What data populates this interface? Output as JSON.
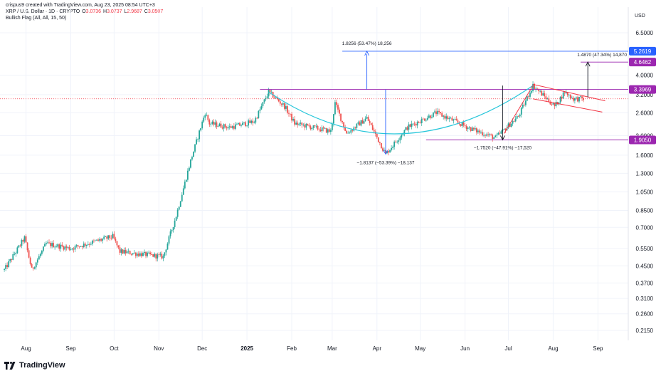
{
  "header": {
    "creator_line": "crispus9 created with TradingView.com, Aug 23, 2025 08:54 UTC+3",
    "symbol": "XRP / U.S. Dollar · 1D · CRYPTO",
    "open_label": "O",
    "open": "3.0736",
    "high_label": "H",
    "high": "3.0737",
    "low_label": "L",
    "low": "2.9687",
    "close_label": "C",
    "close": "3.0507",
    "indicator": "Bullish Flag (All, All, 15, 50)"
  },
  "currency": "USD",
  "footer": {
    "brand": "TradingView"
  },
  "colors": {
    "up": "#26a69a",
    "down": "#ef5350",
    "cup": "#26c6da",
    "blue": "#2962ff",
    "purple": "#9c27b0",
    "dark": "#131722",
    "flag": "#f23645"
  },
  "annotations": {
    "upper_measure": "1.8256 (53.47%) 18,256",
    "lower_measure": "−1.8137 (−53.39%) −18,137",
    "mid_measure": "−1.7520 (−47.91%) −17,520",
    "right_measure": "1.4870 (47.34%) 14,870"
  },
  "chart_data": {
    "type": "candlestick",
    "scale": "log",
    "title": "XRP / U.S. Dollar · 1D · CRYPTO",
    "y_ticks": [
      "6.5000",
      "4.0000",
      "3.2000",
      "2.6000",
      "2.0000",
      "1.6000",
      "1.3000",
      "1.0500",
      "0.8500",
      "0.7000",
      "0.5500",
      "0.4500",
      "0.3700",
      "0.3100",
      "0.2600",
      "0.2150"
    ],
    "x_ticks": [
      "Aug",
      "Sep",
      "Oct",
      "Nov",
      "Dec",
      "2025",
      "Feb",
      "Mar",
      "Apr",
      "May",
      "Jun",
      "Jul",
      "Aug",
      "Sep"
    ],
    "x_ticks_bold": [
      "2025"
    ],
    "ylim": [
      0.2,
      8.0
    ],
    "xlim": [
      "2024-07-14",
      "2025-09-22"
    ],
    "price_labels": [
      {
        "text": "5.2619",
        "value": 5.2619,
        "color": "#2962ff"
      },
      {
        "text": "4.6462",
        "value": 4.6462,
        "color": "#9c27b0"
      },
      {
        "text": "3.3969",
        "value": 3.3969,
        "color": "#9c27b0"
      },
      {
        "text": "1.9050",
        "value": 1.905,
        "color": "#9c27b0"
      }
    ],
    "resistance": 3.3969,
    "support": 1.905,
    "current_price": 3.0507,
    "key_points": [
      {
        "date": "2024-07-17",
        "price": 0.43
      },
      {
        "date": "2024-07-31",
        "price": 0.62
      },
      {
        "date": "2024-08-05",
        "price": 0.43
      },
      {
        "date": "2024-08-15",
        "price": 0.58
      },
      {
        "date": "2024-09-01",
        "price": 0.55
      },
      {
        "date": "2024-09-30",
        "price": 0.63
      },
      {
        "date": "2024-10-05",
        "price": 0.53
      },
      {
        "date": "2024-11-04",
        "price": 0.5
      },
      {
        "date": "2024-11-13",
        "price": 0.8
      },
      {
        "date": "2024-11-23",
        "price": 1.5
      },
      {
        "date": "2024-12-03",
        "price": 2.6
      },
      {
        "date": "2024-12-06",
        "price": 2.3
      },
      {
        "date": "2024-12-20",
        "price": 2.2
      },
      {
        "date": "2025-01-06",
        "price": 2.35
      },
      {
        "date": "2025-01-16",
        "price": 3.3
      },
      {
        "date": "2025-01-27",
        "price": 2.8
      },
      {
        "date": "2025-02-03",
        "price": 2.3
      },
      {
        "date": "2025-02-28",
        "price": 2.1
      },
      {
        "date": "2025-03-03",
        "price": 2.9
      },
      {
        "date": "2025-03-11",
        "price": 2.05
      },
      {
        "date": "2025-03-25",
        "price": 2.45
      },
      {
        "date": "2025-04-07",
        "price": 1.62
      },
      {
        "date": "2025-04-22",
        "price": 2.2
      },
      {
        "date": "2025-05-12",
        "price": 2.6
      },
      {
        "date": "2025-06-06",
        "price": 2.15
      },
      {
        "date": "2025-06-22",
        "price": 1.95
      },
      {
        "date": "2025-07-08",
        "price": 2.5
      },
      {
        "date": "2025-07-18",
        "price": 3.55
      },
      {
        "date": "2025-08-02",
        "price": 2.8
      },
      {
        "date": "2025-08-09",
        "price": 3.3
      },
      {
        "date": "2025-08-15",
        "price": 3.05
      },
      {
        "date": "2025-08-22",
        "price": 3.05
      }
    ]
  }
}
